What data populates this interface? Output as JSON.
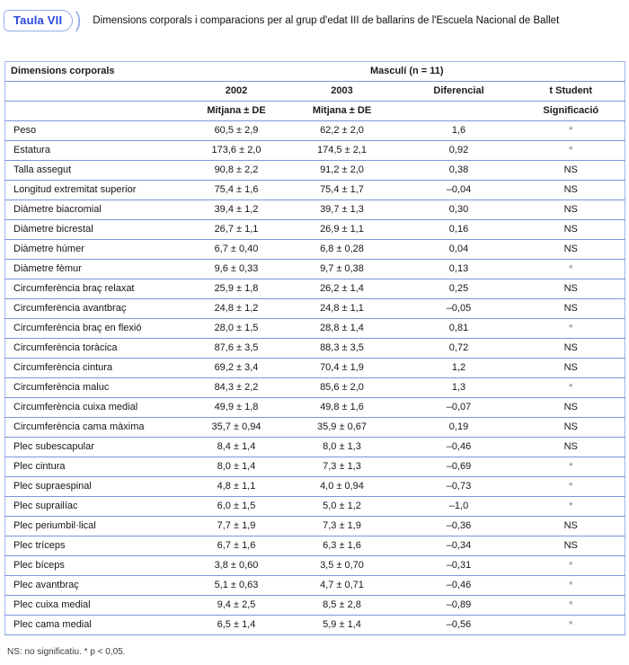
{
  "title": {
    "label": "Taula VII",
    "paren": ")",
    "caption": "Dimensions corporals i comparacions per al grup d'edat III de ballarins de l'Escuela Nacional de Ballet"
  },
  "table": {
    "col1_header": "Dimensions corporals",
    "group_header": "Masculí (n = 11)",
    "columns": [
      "2002",
      "2003",
      "Diferencial",
      "t Student"
    ],
    "mean_label": "Mitjana ± DE",
    "sig_label": "Significació",
    "rows": [
      {
        "label": "Peso",
        "y2002": "60,5 ± 2,9",
        "y2003": "62,2 ± 2,0",
        "diff": "1,6",
        "sig": "*"
      },
      {
        "label": "Estatura",
        "y2002": "173,6 ± 2,0",
        "y2003": "174,5 ± 2,1",
        "diff": "0,92",
        "sig": "*"
      },
      {
        "label": "Talla assegut",
        "y2002": "90,8 ± 2,2",
        "y2003": "91,2 ± 2,0",
        "diff": "0,38",
        "sig": "NS"
      },
      {
        "label": "Longitud extremitat superior",
        "y2002": "75,4 ± 1,6",
        "y2003": "75,4 ± 1,7",
        "diff": "–0,04",
        "sig": "NS"
      },
      {
        "label": "Diàmetre biacromial",
        "y2002": "39,4 ± 1,2",
        "y2003": "39,7 ± 1,3",
        "diff": "0,30",
        "sig": "NS"
      },
      {
        "label": "Diàmetre bicrestal",
        "y2002": "26,7 ± 1,1",
        "y2003": "26,9 ± 1,1",
        "diff": "0,16",
        "sig": "NS"
      },
      {
        "label": "Diàmetre húmer",
        "y2002": "6,7 ± 0,40",
        "y2003": "6,8 ± 0,28",
        "diff": "0,04",
        "sig": "NS"
      },
      {
        "label": "Diàmetre fèmur",
        "y2002": "9,6 ± 0,33",
        "y2003": "9,7 ± 0,38",
        "diff": "0,13",
        "sig": "*"
      },
      {
        "label": "Circumferència braç relaxat",
        "y2002": "25,9 ± 1,8",
        "y2003": "26,2 ± 1,4",
        "diff": "0,25",
        "sig": "NS"
      },
      {
        "label": "Circumferència avantbraç",
        "y2002": "24,8 ± 1,2",
        "y2003": "24,8 ± 1,1",
        "diff": "–0,05",
        "sig": "NS"
      },
      {
        "label": "Circumferència braç en flexió",
        "y2002": "28,0 ± 1,5",
        "y2003": "28,8 ± 1,4",
        "diff": "0,81",
        "sig": "*"
      },
      {
        "label": "Circumferència toràcica",
        "y2002": "87,6 ± 3,5",
        "y2003": "88,3 ± 3,5",
        "diff": "0,72",
        "sig": "NS"
      },
      {
        "label": "Circumferència cintura",
        "y2002": "69,2 ± 3,4",
        "y2003": "70,4 ± 1,9",
        "diff": "1,2",
        "sig": "NS"
      },
      {
        "label": "Circumferència maluc",
        "y2002": "84,3 ± 2,2",
        "y2003": "85,6 ± 2,0",
        "diff": "1,3",
        "sig": "*"
      },
      {
        "label": "Circumferència cuixa medial",
        "y2002": "49,9 ± 1,8",
        "y2003": "49,8 ± 1,6",
        "diff": "–0,07",
        "sig": "NS"
      },
      {
        "label": "Circumferència cama màxima",
        "y2002": "35,7 ± 0,94",
        "y2003": "35,9 ± 0,67",
        "diff": "0,19",
        "sig": "NS"
      },
      {
        "label": "Plec subescapular",
        "y2002": "8,4 ± 1,4",
        "y2003": "8,0 ± 1,3",
        "diff": "–0,46",
        "sig": "NS"
      },
      {
        "label": "Plec cintura",
        "y2002": "8,0 ± 1,4",
        "y2003": "7,3 ± 1,3",
        "diff": "–0,69",
        "sig": "*"
      },
      {
        "label": "Plec supraespinal",
        "y2002": "4,8 ± 1,1",
        "y2003": "4,0 ± 0,94",
        "diff": "–0,73",
        "sig": "*"
      },
      {
        "label": "Plec suprailíac",
        "y2002": "6,0 ± 1,5",
        "y2003": "5,0 ± 1,2",
        "diff": "–1,0",
        "sig": "*"
      },
      {
        "label": "Plec periumbil·lical",
        "y2002": "7,7 ± 1,9",
        "y2003": "7,3 ± 1,9",
        "diff": "–0,36",
        "sig": "NS"
      },
      {
        "label": "Plec tríceps",
        "y2002": "6,7 ± 1,6",
        "y2003": "6,3 ± 1,6",
        "diff": "–0,34",
        "sig": "NS"
      },
      {
        "label": "Plec bíceps",
        "y2002": "3,8 ± 0,60",
        "y2003": "3,5 ± 0,70",
        "diff": "–0,31",
        "sig": "*"
      },
      {
        "label": "Plec avantbraç",
        "y2002": "5,1 ± 0,63",
        "y2003": "4,7 ± 0,71",
        "diff": "–0,46",
        "sig": "*"
      },
      {
        "label": "Plec cuixa medial",
        "y2002": "9,4 ± 2,5",
        "y2003": "8,5 ± 2,8",
        "diff": "–0,89",
        "sig": "*"
      },
      {
        "label": "Plec cama medial",
        "y2002": "6,5 ± 1,4",
        "y2003": "5,9 ± 1,4",
        "diff": "–0,56",
        "sig": "*"
      }
    ]
  },
  "footnote": "NS: no significatiu. * p < 0,05.",
  "colors": {
    "accent_blue": "#2647d9",
    "pill_border_blue": "#96abe8",
    "table_border_blue": "#9db4ea",
    "row_line_blue": "#7b96df",
    "asterisk_gray": "#8a8a8a"
  }
}
